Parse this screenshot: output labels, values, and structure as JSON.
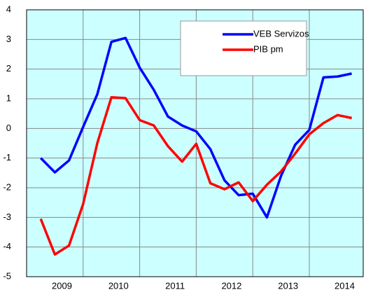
{
  "chart_data": {
    "type": "line",
    "categories": [
      null,
      "2009",
      null,
      null,
      null,
      "2010",
      null,
      null,
      null,
      "2011",
      null,
      null,
      null,
      "2012",
      null,
      null,
      null,
      "2013",
      null,
      null,
      null,
      "2014",
      null
    ],
    "series": [
      {
        "name": "VEB Servizos",
        "color": "#0000ff",
        "values": [
          -1.0,
          -1.48,
          -1.08,
          0.05,
          1.15,
          2.92,
          3.05,
          2.05,
          1.3,
          0.4,
          0.1,
          -0.1,
          -0.7,
          -1.75,
          -2.25,
          -2.2,
          -3.0,
          -1.6,
          -0.55,
          -0.05,
          1.72,
          1.75,
          1.85
        ]
      },
      {
        "name": "PIB pm",
        "color": "#ff0000",
        "values": [
          -3.05,
          -4.25,
          -3.95,
          -2.55,
          -0.5,
          1.05,
          1.02,
          0.28,
          0.1,
          -0.6,
          -1.12,
          -0.52,
          -1.85,
          -2.05,
          -1.82,
          -2.45,
          -1.9,
          -1.45,
          -0.85,
          -0.2,
          0.18,
          0.45,
          0.35
        ]
      }
    ],
    "ylim": [
      -5,
      4
    ],
    "yticks": [
      -5,
      -4,
      -3,
      -2,
      -1,
      0,
      1,
      2,
      3,
      4
    ],
    "grid": true,
    "legend": "upper right"
  }
}
